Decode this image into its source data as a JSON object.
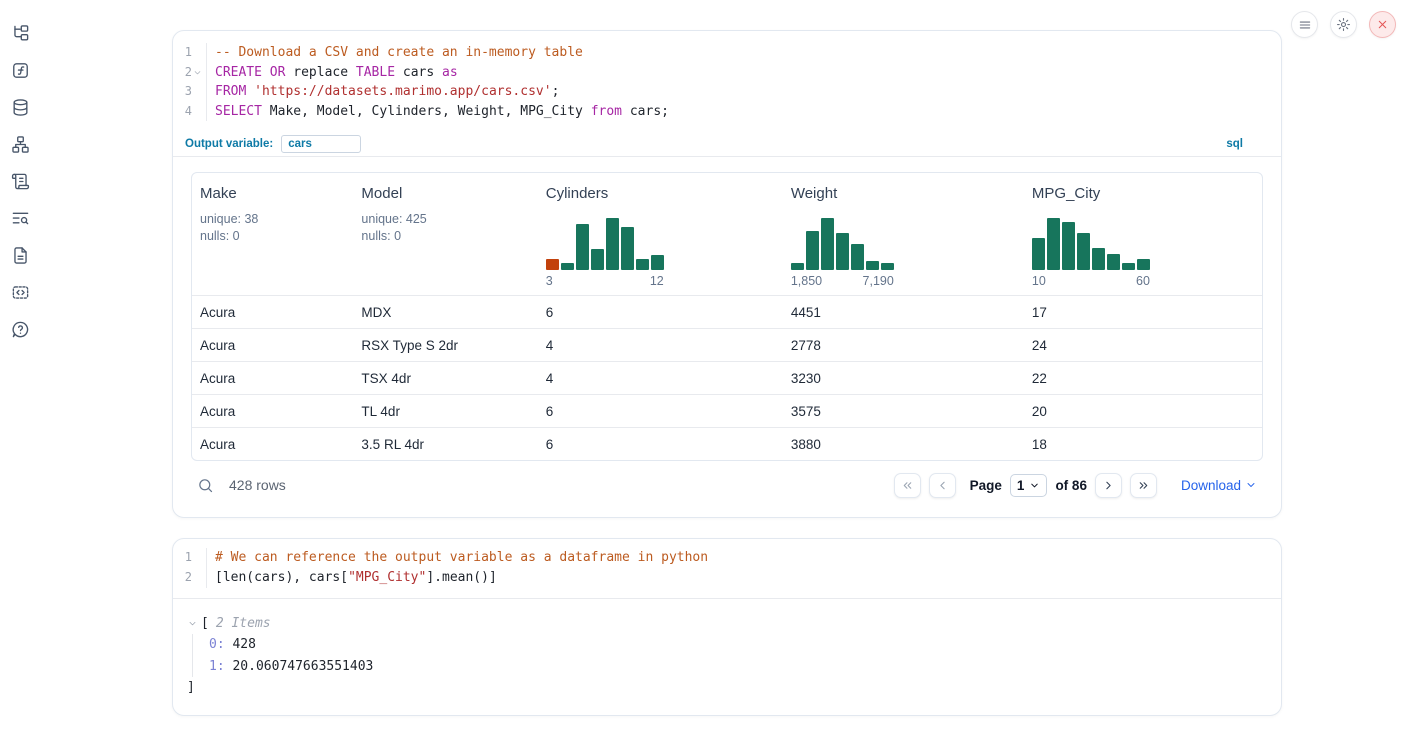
{
  "colors": {
    "keyword": "#a626a4",
    "string": "#b03030",
    "comment": "#bc5b20",
    "accent": "#0e7aa6",
    "link": "#2563eb",
    "hist_green": "#17755c",
    "hist_orange": "#c2410c",
    "index": "#7b82d4",
    "close_red": "#e35454"
  },
  "sidebar": {
    "icons": [
      "file-tree",
      "function-square",
      "database",
      "dependency-graph",
      "scroll",
      "logs-search",
      "document",
      "code-snippets",
      "help"
    ]
  },
  "window_controls": {
    "icons": [
      "hamburger-menu",
      "gear",
      "close"
    ]
  },
  "cells": {
    "sql": {
      "lines": [
        {
          "n": "1",
          "tokens": [
            [
              "comment",
              "-- Download a CSV and create an in-memory table"
            ]
          ]
        },
        {
          "n": "2",
          "fold": true,
          "tokens": [
            [
              "keyword",
              "CREATE"
            ],
            [
              "plain",
              " "
            ],
            [
              "keyword",
              "OR"
            ],
            [
              "plain",
              " replace "
            ],
            [
              "keyword",
              "TABLE"
            ],
            [
              "plain",
              " cars "
            ],
            [
              "keyword",
              "as"
            ]
          ]
        },
        {
          "n": "3",
          "tokens": [
            [
              "keyword",
              "FROM"
            ],
            [
              "plain",
              " "
            ],
            [
              "string",
              "'https://datasets.marimo.app/cars.csv'"
            ],
            [
              "plain",
              ";"
            ]
          ]
        },
        {
          "n": "4",
          "tokens": [
            [
              "keyword",
              "SELECT"
            ],
            [
              "plain",
              " Make, Model, Cylinders, Weight, MPG_City "
            ],
            [
              "keyword",
              "from"
            ],
            [
              "plain",
              " cars;"
            ]
          ]
        }
      ],
      "output_variable_label": "Output variable:",
      "output_variable_value": "cars",
      "language_badge": "sql"
    },
    "python": {
      "lines": [
        {
          "n": "1",
          "tokens": [
            [
              "comment",
              "# We can reference the output variable as a dataframe in python"
            ]
          ]
        },
        {
          "n": "2",
          "tokens": [
            [
              "plain",
              "[len(cars), cars["
            ],
            [
              "string",
              "\"MPG_City\""
            ],
            [
              "plain",
              "].mean()]"
            ]
          ]
        }
      ]
    }
  },
  "table": {
    "columns": [
      {
        "name": "Make",
        "type": "stats",
        "stats": [
          "unique: 38",
          "nulls: 0"
        ]
      },
      {
        "name": "Model",
        "type": "stats",
        "stats": [
          "unique: 425",
          "nulls: 0"
        ]
      },
      {
        "name": "Cylinders",
        "type": "histogram",
        "min_label": "3",
        "max_label": "12",
        "bars": [
          0.22,
          0.13,
          0.88,
          0.4,
          1.0,
          0.82,
          0.22,
          0.28
        ],
        "bar_colors": [
          "#c2410c",
          "#17755c",
          "#17755c",
          "#17755c",
          "#17755c",
          "#17755c",
          "#17755c",
          "#17755c"
        ]
      },
      {
        "name": "Weight",
        "type": "histogram",
        "min_label": "1,850",
        "max_label": "7,190",
        "bars": [
          0.13,
          0.75,
          1.0,
          0.72,
          0.5,
          0.18,
          0.13
        ]
      },
      {
        "name": "MPG_City",
        "type": "histogram",
        "min_label": "10",
        "max_label": "60",
        "bars": [
          0.62,
          1.0,
          0.92,
          0.72,
          0.42,
          0.3,
          0.13,
          0.22
        ]
      }
    ],
    "rows": [
      [
        "Acura",
        "MDX",
        "6",
        "4451",
        "17"
      ],
      [
        "Acura",
        "RSX Type S 2dr",
        "4",
        "2778",
        "24"
      ],
      [
        "Acura",
        "TSX 4dr",
        "4",
        "3230",
        "22"
      ],
      [
        "Acura",
        "TL 4dr",
        "6",
        "3575",
        "20"
      ],
      [
        "Acura",
        "3.5 RL 4dr",
        "6",
        "3880",
        "18"
      ]
    ],
    "footer": {
      "row_count": "428 rows",
      "page_label": "Page",
      "page_value": "1",
      "of_label": "of 86",
      "download_label": "Download"
    }
  },
  "python_output": {
    "open_bracket": "[",
    "items_label": "2 Items",
    "entries": [
      {
        "index": "0:",
        "value": "428"
      },
      {
        "index": "1:",
        "value": "20.060747663551403"
      }
    ],
    "close_bracket": "]"
  }
}
